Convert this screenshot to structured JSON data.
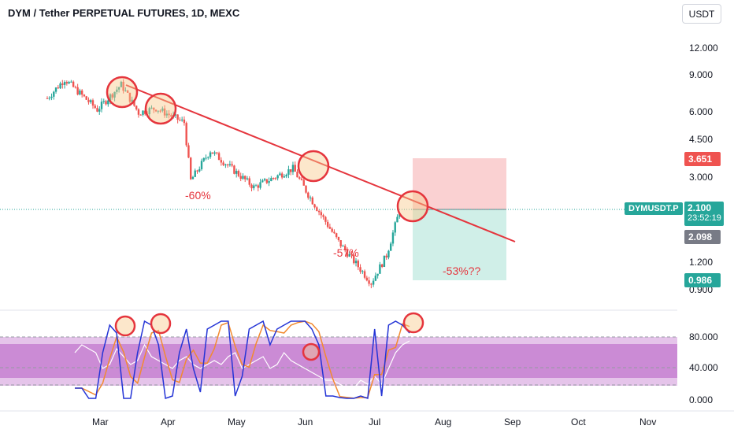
{
  "header": {
    "title": "DYM / Tether PERPETUAL FUTURES, 1D, MEXC",
    "currency": "USDT"
  },
  "price_axis": {
    "ticks": [
      "12.000",
      "9.000",
      "6.000",
      "4.500",
      "3.000",
      "1.200",
      "0.900"
    ]
  },
  "osc_axis": {
    "ticks": [
      "80.000",
      "40.000",
      "0.000"
    ]
  },
  "time_axis": {
    "ticks": [
      "Mar",
      "Apr",
      "May",
      "Jun",
      "Jul",
      "Aug",
      "Sep",
      "Oct",
      "Nov"
    ]
  },
  "labels": {
    "stop": "3.651",
    "symbol": "DYMUSDT.P",
    "last_price": "2.100",
    "countdown": "23:52:19",
    "prev_price": "2.098",
    "target": "0.986"
  },
  "annotations": {
    "drop1": "-60%",
    "drop2": "-57%",
    "drop3": "-53%??"
  },
  "colors": {
    "up": "#26a69a",
    "down": "#ef5350",
    "trendline": "#e5353d",
    "stoch_k": "#2434d6",
    "stoch_d": "#f28a30",
    "rsi": "#ffffff",
    "band": "#ab47bc"
  },
  "chart_data": {
    "type": "candlestick",
    "x_range": [
      "2024-02-07",
      "2024-11-13"
    ],
    "y_scale": "log",
    "ylim": [
      0.85,
      13
    ],
    "series": [
      {
        "x": "2024-02-07",
        "close": 7.0
      },
      {
        "x": "2024-02-15",
        "close": 8.6
      },
      {
        "x": "2024-03-01",
        "close": 6.2
      },
      {
        "x": "2024-03-12",
        "close": 8.1
      },
      {
        "x": "2024-03-20",
        "close": 6.0
      },
      {
        "x": "2024-03-28",
        "close": 6.3
      },
      {
        "x": "2024-04-10",
        "close": 5.4
      },
      {
        "x": "2024-04-13",
        "close": 2.9
      },
      {
        "x": "2024-04-22",
        "close": 4.0
      },
      {
        "x": "2024-05-12",
        "close": 2.7
      },
      {
        "x": "2024-05-30",
        "close": 3.3
      },
      {
        "x": "2024-06-06",
        "close": 2.5
      },
      {
        "x": "2024-06-20",
        "close": 1.5
      },
      {
        "x": "2024-07-05",
        "close": 0.97
      },
      {
        "x": "2024-07-12",
        "close": 1.3
      },
      {
        "x": "2024-07-18",
        "close": 2.1
      }
    ],
    "trendline": {
      "from": {
        "x": "2024-03-12",
        "y": 8.2
      },
      "to": {
        "x": "2024-08-28",
        "y": 1.7
      }
    },
    "position": {
      "entry": 2.1,
      "stop": 3.651,
      "target": 0.986
    },
    "oscillator": {
      "levels": [
        0,
        40,
        80
      ],
      "ylim": [
        0,
        100
      ]
    }
  }
}
